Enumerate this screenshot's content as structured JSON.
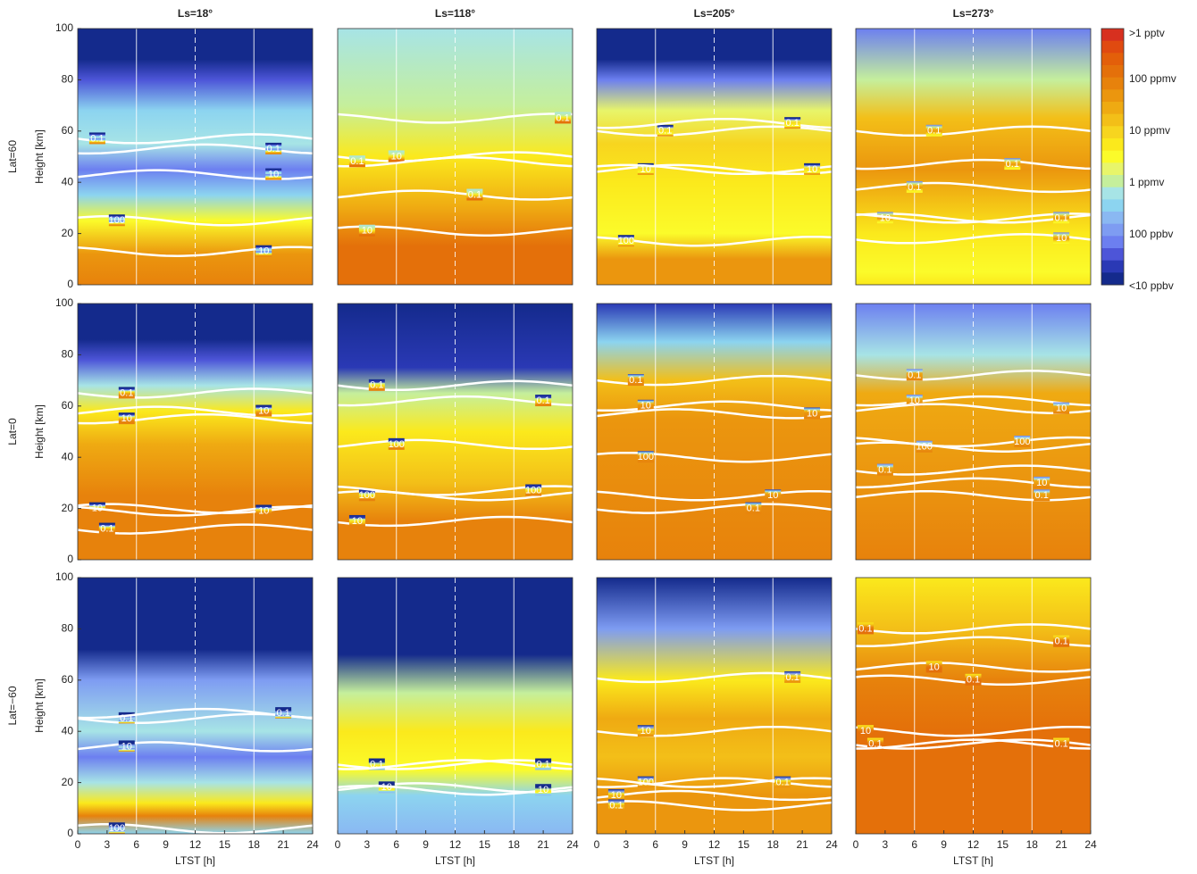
{
  "chart_data": [
    {
      "type": "contour",
      "title": "Ls=18°",
      "row_label": "Lat=60",
      "ylabel": "Height [km]",
      "xlim": [
        0,
        24
      ],
      "ylim": [
        0,
        100
      ],
      "yticks": [
        0,
        20,
        40,
        60,
        80,
        100
      ],
      "vlines": [
        6,
        12,
        18
      ],
      "contour_labels": [
        0.1,
        0.1,
        10,
        100,
        10
      ]
    },
    {
      "type": "contour",
      "title": "Ls=118°",
      "xlim": [
        0,
        24
      ],
      "ylim": [
        0,
        100
      ],
      "vlines": [
        6,
        12,
        18
      ],
      "contour_labels": [
        10,
        0.1,
        0.1,
        10,
        0.1
      ]
    },
    {
      "type": "contour",
      "title": "Ls=205°",
      "xlim": [
        0,
        24
      ],
      "ylim": [
        0,
        100
      ],
      "vlines": [
        6,
        12,
        18
      ],
      "contour_labels": [
        0.1,
        0.1,
        10,
        10,
        100
      ]
    },
    {
      "type": "contour",
      "title": "Ls=273°",
      "xlim": [
        0,
        24
      ],
      "ylim": [
        0,
        100
      ],
      "vlines": [
        6,
        12,
        18
      ],
      "contour_labels": [
        0.1,
        0.1,
        0.1,
        10,
        0.1,
        10
      ]
    },
    {
      "type": "contour",
      "row_label": "Lat=0",
      "ylabel": "Height [km]",
      "xlim": [
        0,
        24
      ],
      "ylim": [
        0,
        100
      ],
      "yticks": [
        0,
        20,
        40,
        60,
        80,
        100
      ],
      "vlines": [
        6,
        12,
        18
      ],
      "contour_labels": [
        0.1,
        10,
        10,
        10,
        10,
        0.1
      ]
    },
    {
      "type": "contour",
      "xlim": [
        0,
        24
      ],
      "ylim": [
        0,
        100
      ],
      "vlines": [
        6,
        12,
        18
      ],
      "contour_labels": [
        0.1,
        0.1,
        100,
        100,
        100,
        10
      ]
    },
    {
      "type": "contour",
      "xlim": [
        0,
        24
      ],
      "ylim": [
        0,
        100
      ],
      "vlines": [
        6,
        12,
        18
      ],
      "contour_labels": [
        0.1,
        10,
        10,
        100,
        10,
        0.1
      ]
    },
    {
      "type": "contour",
      "xlim": [
        0,
        24
      ],
      "ylim": [
        0,
        100
      ],
      "vlines": [
        6,
        12,
        18
      ],
      "contour_labels": [
        0.1,
        10,
        10,
        100,
        100,
        0.1,
        10,
        0.1
      ]
    },
    {
      "type": "contour",
      "row_label": "Lat=−60",
      "ylabel": "Height [km]",
      "xlabel": "LTST [h]",
      "xlim": [
        0,
        24
      ],
      "ylim": [
        0,
        100
      ],
      "xticks": [
        0,
        3,
        6,
        9,
        12,
        15,
        18,
        21,
        24
      ],
      "yticks": [
        0,
        20,
        40,
        60,
        80,
        100
      ],
      "vlines": [
        6,
        12,
        18
      ],
      "contour_labels": [
        0.1,
        0.1,
        10,
        100
      ]
    },
    {
      "type": "contour",
      "xlabel": "LTST [h]",
      "xlim": [
        0,
        24
      ],
      "ylim": [
        0,
        100
      ],
      "xticks": [
        0,
        3,
        6,
        9,
        12,
        15,
        18,
        21,
        24
      ],
      "vlines": [
        6,
        12,
        18
      ],
      "contour_labels": [
        0.1,
        0.1,
        10,
        10
      ]
    },
    {
      "type": "contour",
      "xlabel": "LTST [h]",
      "xlim": [
        0,
        24
      ],
      "ylim": [
        0,
        100
      ],
      "xticks": [
        0,
        3,
        6,
        9,
        12,
        15,
        18,
        21,
        24
      ],
      "vlines": [
        6,
        12,
        18
      ],
      "contour_labels": [
        10,
        100,
        10,
        0.1,
        0.1,
        0.1
      ]
    },
    {
      "type": "contour",
      "xlabel": "LTST [h]",
      "xlim": [
        0,
        24
      ],
      "ylim": [
        0,
        100
      ],
      "xticks": [
        0,
        3,
        6,
        9,
        12,
        15,
        18,
        21,
        24
      ],
      "vlines": [
        6,
        12,
        18
      ],
      "contour_labels": [
        0.1,
        0.1,
        10,
        0.1,
        10,
        0.1,
        0.1
      ]
    }
  ],
  "colorbar": {
    "labels": [
      ">1 pptv",
      "100 ppmv",
      "10 ppmv",
      "1 ppmv",
      "100 ppbv",
      "<10 ppbv"
    ],
    "colors": [
      "#d7301f",
      "#e04a10",
      "#e35f0a",
      "#e4700a",
      "#e7820c",
      "#eb960e",
      "#efaa12",
      "#f3bf18",
      "#f7d51f",
      "#fbe91c",
      "#fbfb2a",
      "#e8f56a",
      "#c5ef9c",
      "#a7e4e6",
      "#8cd4f0",
      "#8ab8f2",
      "#7e9cf2",
      "#6c7ff0",
      "#4d55d8",
      "#2a39b5",
      "#142a8c"
    ]
  }
}
